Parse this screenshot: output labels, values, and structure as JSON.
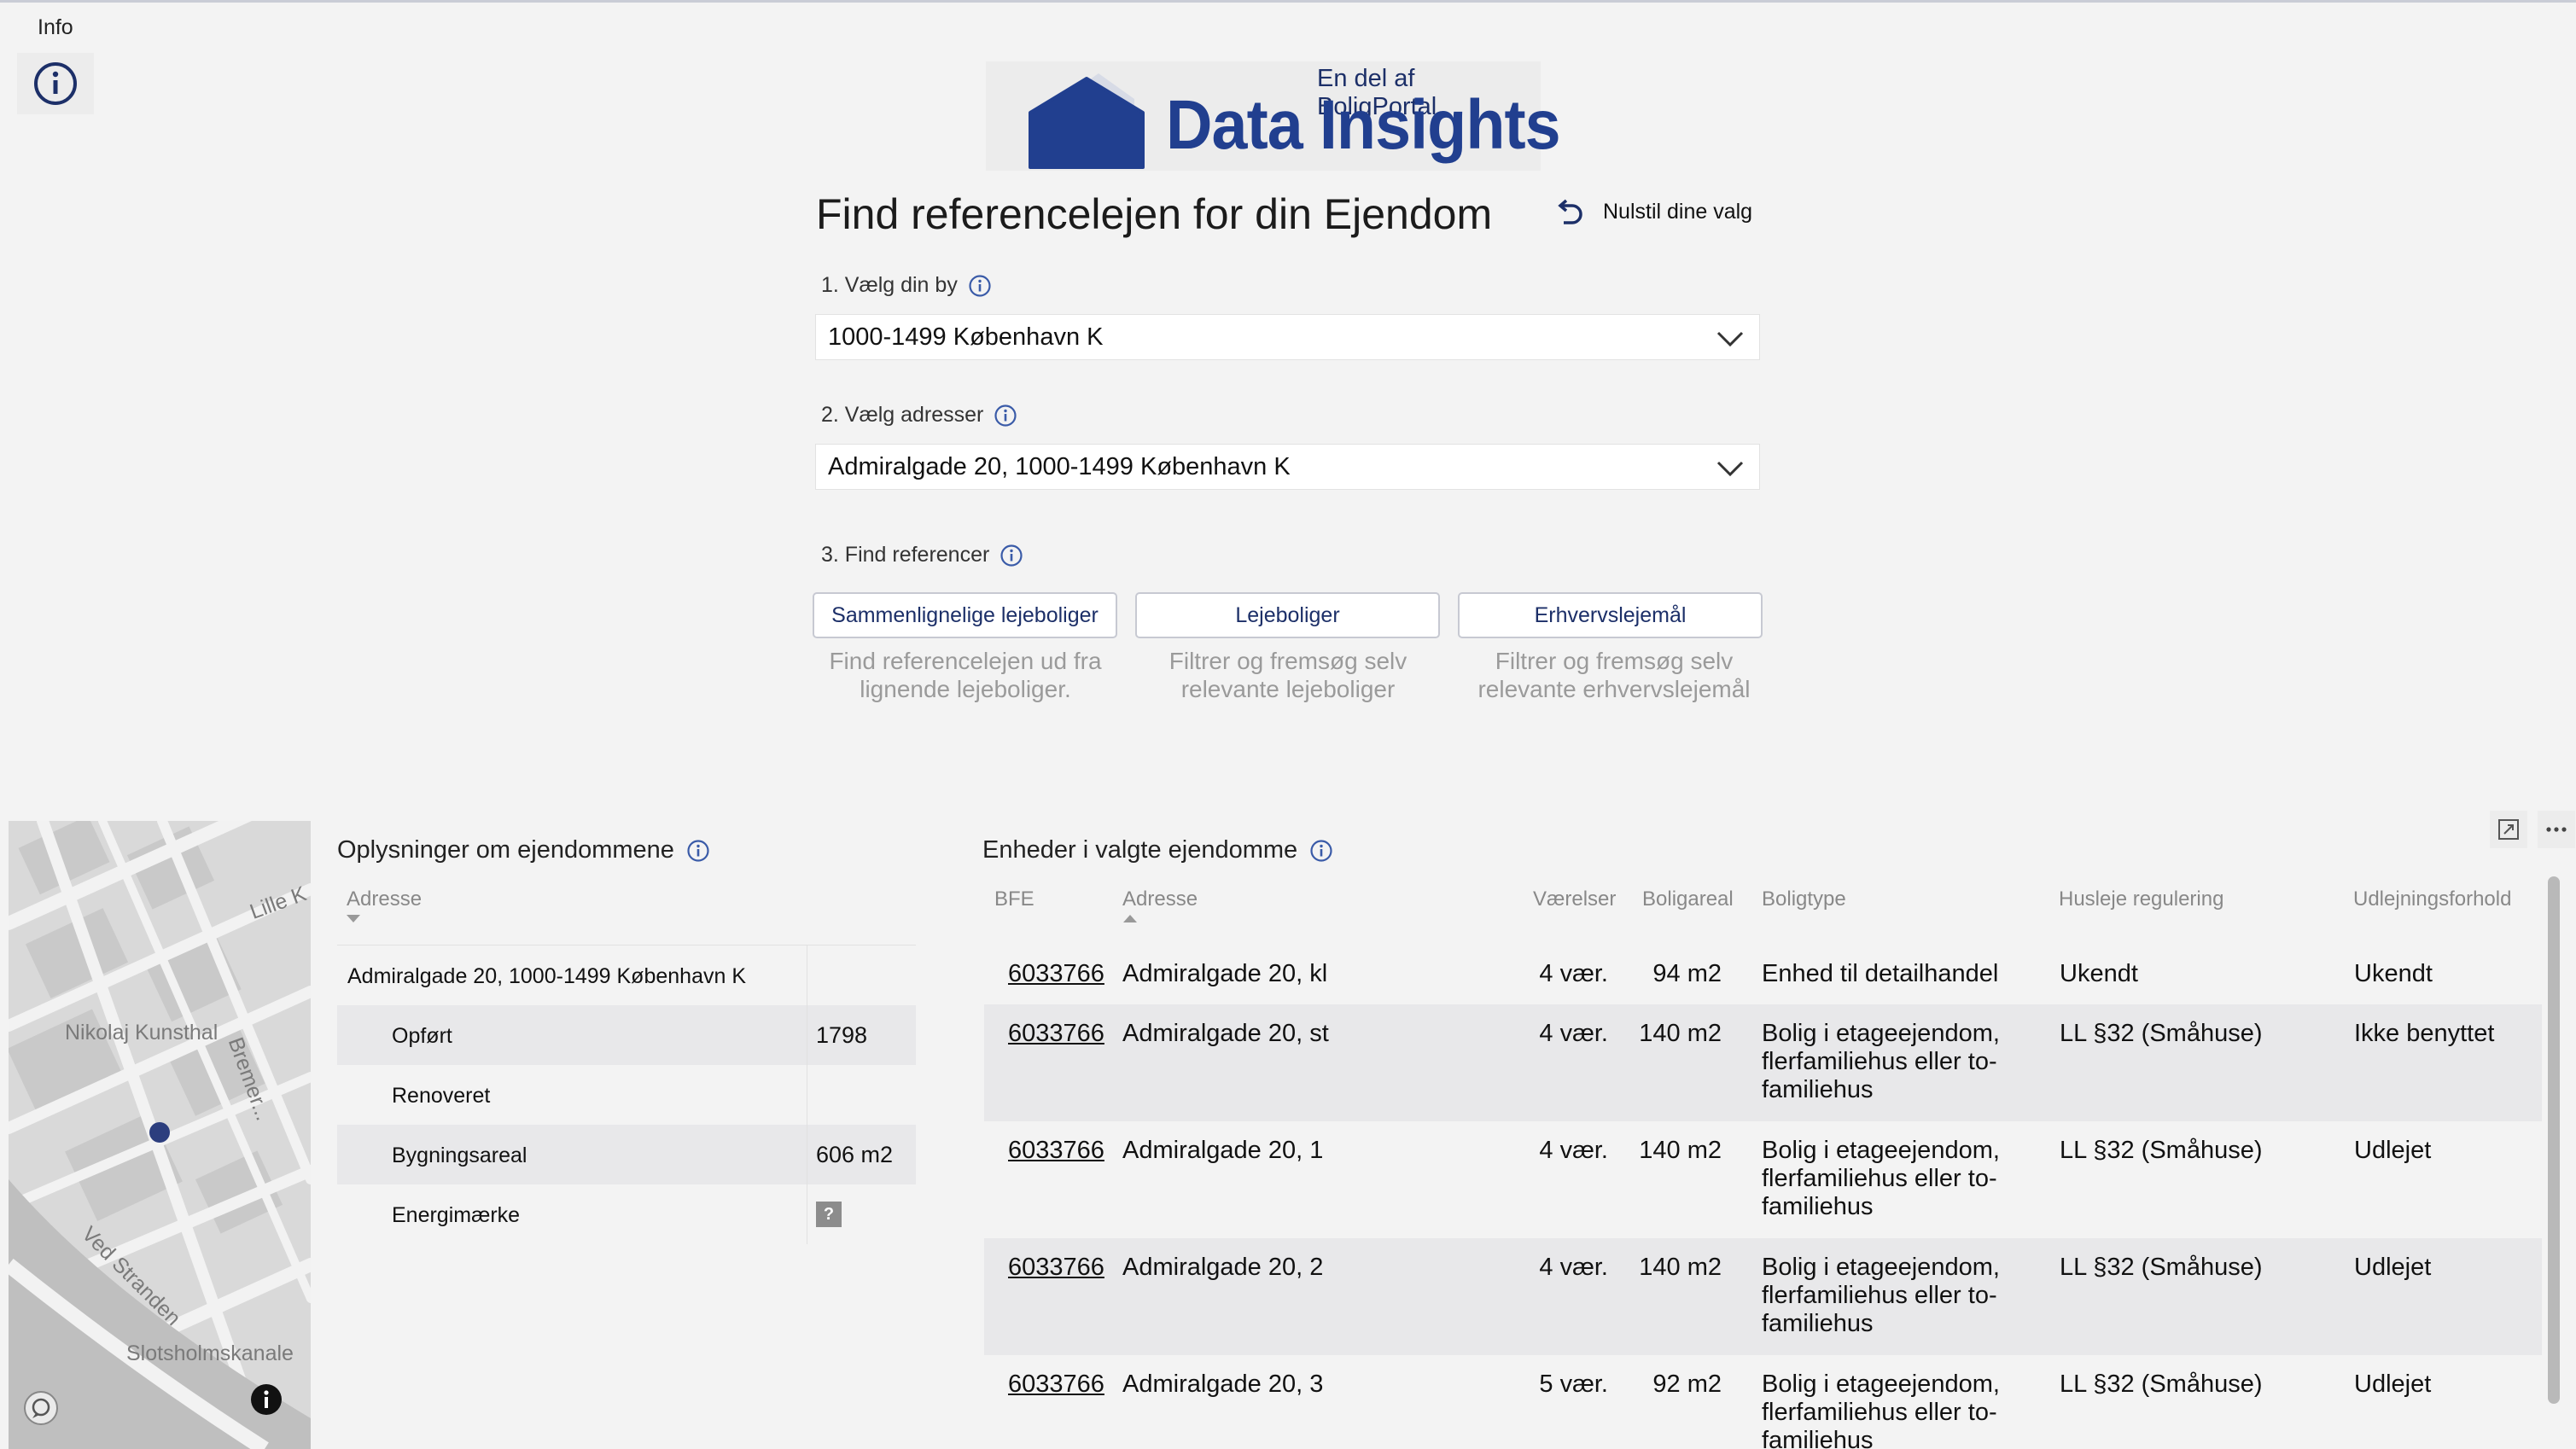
{
  "info": {
    "label": "Info",
    "icon": "info-circle-icon"
  },
  "logo": {
    "subtitle": "En del af BoligPortal",
    "title": "Data Insights",
    "icon": "house-icon"
  },
  "header": {
    "title": "Find referencelejen for din Ejendom",
    "reset_label": "Nulstil dine valg",
    "reset_icon": "undo-arrow-icon"
  },
  "step1": {
    "label": "1. Vælg din by",
    "value": "1000-1499 København K"
  },
  "step2": {
    "label": "2. Vælg adresser",
    "value": "Admiralgade 20, 1000-1499 København K"
  },
  "step3": {
    "label": "3. Find referencer",
    "buttons": [
      {
        "label": "Sammenlignelige lejeboliger",
        "desc": "Find referencelejen ud fra lignende lejeboliger."
      },
      {
        "label": "Lejeboliger",
        "desc": "Filtrer og fremsøg selv relevante lejeboliger"
      },
      {
        "label": "Erhvervslejemål",
        "desc": "Filtrer og fremsøg selv relevante erhvervslejemål"
      }
    ]
  },
  "map": {
    "labels": [
      "Lille K",
      "Nikolaj Kunsthal",
      "Bremer...",
      "Ved Stranden",
      "Slotsholmskanale"
    ]
  },
  "property": {
    "title": "Oplysninger om ejendommene",
    "column_header": "Adresse",
    "address": "Admiralgade 20, 1000-1499 København K",
    "rows": [
      {
        "label": "Opført",
        "value": "1798"
      },
      {
        "label": "Renoveret",
        "value": ""
      },
      {
        "label": "Bygningsareal",
        "value": "606 m2"
      },
      {
        "label": "Energimærke",
        "value": "?"
      }
    ]
  },
  "units": {
    "title": "Enheder i valgte ejendomme",
    "columns": [
      "BFE",
      "Adresse",
      "Værelser",
      "Boligareal",
      "Boligtype",
      "Husleje regulering",
      "Udlejningsforhold"
    ],
    "rows": [
      {
        "bfe": "6033766",
        "address": "Admiralgade 20, kl",
        "rooms": "4 vær.",
        "area": "94 m2",
        "type": "Enhed til detailhandel",
        "regulation": "Ukendt",
        "rental": "Ukendt"
      },
      {
        "bfe": "6033766",
        "address": "Admiralgade 20, st",
        "rooms": "4 vær.",
        "area": "140 m2",
        "type": "Bolig i etageejendom, flerfamiliehus eller to-familiehus",
        "regulation": "LL §32 (Småhuse)",
        "rental": "Ikke benyttet"
      },
      {
        "bfe": "6033766",
        "address": "Admiralgade 20, 1",
        "rooms": "4 vær.",
        "area": "140 m2",
        "type": "Bolig i etageejendom, flerfamiliehus eller to-familiehus",
        "regulation": "LL §32 (Småhuse)",
        "rental": "Udlejet"
      },
      {
        "bfe": "6033766",
        "address": "Admiralgade 20, 2",
        "rooms": "4 vær.",
        "area": "140 m2",
        "type": "Bolig i etageejendom, flerfamiliehus eller to-familiehus",
        "regulation": "LL §32 (Småhuse)",
        "rental": "Udlejet"
      },
      {
        "bfe": "6033766",
        "address": "Admiralgade 20, 3",
        "rooms": "5 vær.",
        "area": "92 m2",
        "type": "Bolig i etageejendom, flerfamiliehus eller to-familiehus",
        "regulation": "LL §32 (Småhuse)",
        "rental": "Udlejet"
      }
    ]
  },
  "colors": {
    "brand": "#213f8f",
    "brand_dark": "#1c2f68",
    "row_alt": "#e8e8ea"
  }
}
